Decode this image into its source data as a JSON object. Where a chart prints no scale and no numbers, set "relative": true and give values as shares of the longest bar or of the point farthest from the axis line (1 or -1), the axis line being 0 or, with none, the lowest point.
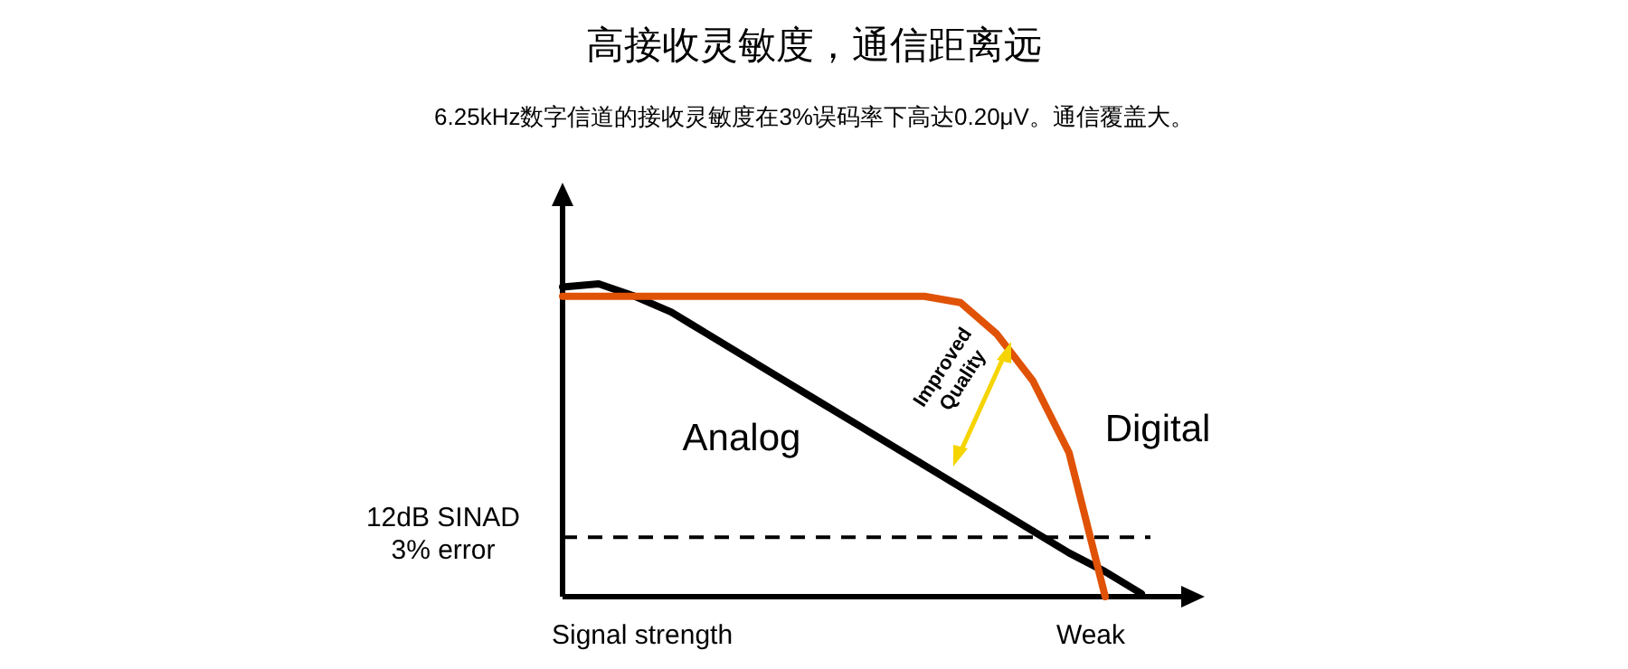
{
  "chart_data": {
    "type": "line",
    "relative": true,
    "title": "高接收灵敏度，通信距离远",
    "subtitle": "6.25kHz数字信道的接收灵敏度在3%误码率下高达0.20μV。通信覆盖大。",
    "xlabel": "Signal strength",
    "annotations": [
      "Weak",
      "Improved Quality"
    ],
    "categories": [
      null,
      null,
      null,
      null,
      null,
      null,
      null,
      null,
      null,
      null,
      null,
      null,
      null,
      null,
      null,
      null,
      null
    ],
    "series": [
      {
        "name": "Analog",
        "color": "#000000",
        "values": [
          0.99,
          1.0,
          0.96,
          0.91,
          0.84,
          0.77,
          0.7,
          0.63,
          0.56,
          0.49,
          0.42,
          0.35,
          0.28,
          0.21,
          0.14,
          0.08,
          0.01
        ]
      },
      {
        "name": "Digital",
        "color": "#e05206",
        "values": [
          0.96,
          0.96,
          0.96,
          0.96,
          0.96,
          0.96,
          0.96,
          0.96,
          0.96,
          0.96,
          0.96,
          0.94,
          0.84,
          0.69,
          0.46,
          0.0,
          null
        ]
      }
    ],
    "ref_lines": [
      {
        "axis": "y",
        "value": 0.19,
        "label": "12dB SINAD\n3% error",
        "color": "#000000",
        "line_style": "dashed"
      }
    ],
    "marker": "none",
    "line_style": "solid"
  }
}
